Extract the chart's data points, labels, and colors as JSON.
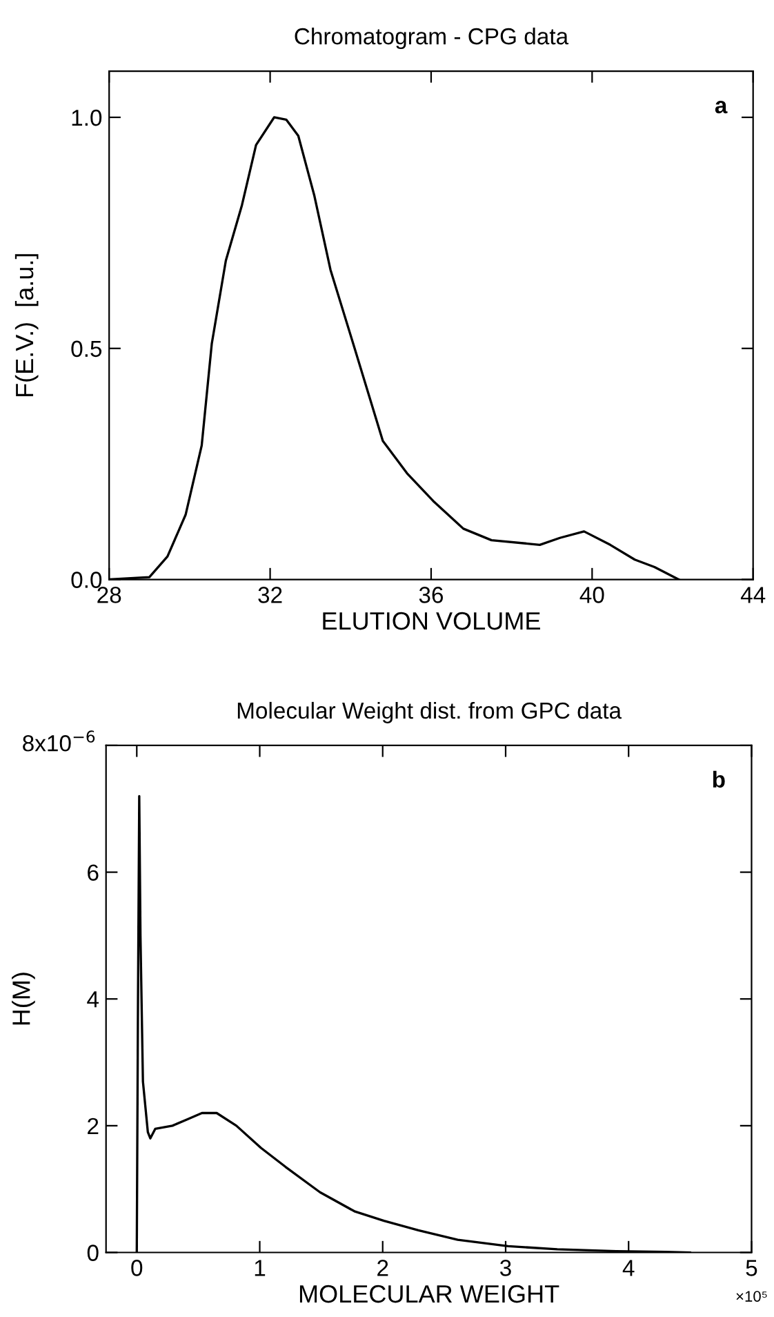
{
  "chart_data": [
    {
      "type": "line",
      "title": "Chromatogram - CPG data",
      "xlabel": "ELUTION VOLUME",
      "ylabel": "F(E.V.)  [a.u.]",
      "annotations": [
        "a"
      ],
      "x": [
        28,
        29.0,
        29.45,
        29.9,
        30.3,
        30.55,
        30.9,
        31.3,
        31.65,
        32.1,
        32.4,
        32.7,
        33.1,
        33.5,
        34.1,
        34.8,
        35.4,
        36.05,
        36.8,
        37.5,
        38.7,
        39.2,
        39.8,
        40.45,
        41.06,
        41.55,
        42.15
      ],
      "series": [
        {
          "color": "#000000",
          "values": [
            0,
            0.005,
            0.05,
            0.14,
            0.29,
            0.51,
            0.69,
            0.81,
            0.94,
            1.0,
            0.995,
            0.96,
            0.83,
            0.67,
            0.5,
            0.3,
            0.23,
            0.17,
            0.11,
            0.085,
            0.075,
            0.09,
            0.104,
            0.075,
            0.043,
            0.027,
            0.0
          ]
        }
      ],
      "xlim": [
        28,
        44
      ],
      "xticks": [
        28,
        32,
        36,
        40,
        44
      ],
      "ylim": [
        0,
        1.1
      ],
      "yticks": [
        {
          "value": 0,
          "label": "0.0"
        },
        0.5,
        {
          "value": 1,
          "label": "1.0"
        }
      ],
      "grid": false,
      "legend": false
    },
    {
      "type": "line",
      "title": "Molecular Weight dist. from GPC data",
      "xlabel": "MOLECULAR WEIGHT",
      "ylabel": "H(M)",
      "annotations": [
        "b",
        "×10⁵",
        "8x10$^{−6}$"
      ],
      "x": [
        0,
        0.01,
        0.02,
        0.03,
        0.05,
        0.09,
        0.11,
        0.15,
        0.29,
        0.41,
        0.53,
        0.65,
        0.81,
        1.01,
        1.21,
        1.49,
        1.77,
        2.01,
        2.29,
        2.61,
        3.02,
        3.42,
        3.9,
        4.3,
        4.5
      ],
      "series": [
        {
          "color": "#000000",
          "values": [
            0,
            4.0,
            7.2,
            5.0,
            2.7,
            1.9,
            1.8,
            1.95,
            2.0,
            2.1,
            2.2,
            2.2,
            2.0,
            1.65,
            1.35,
            0.95,
            0.65,
            0.5,
            0.35,
            0.2,
            0.1,
            0.05,
            0.02,
            0.01,
            0
          ]
        }
      ],
      "xlim": [
        -0.25,
        5
      ],
      "xticks": [
        0,
        1,
        2,
        3,
        4,
        5
      ],
      "ylim": [
        0,
        8
      ],
      "yticks": [
        0,
        2,
        4,
        6,
        {
          "value": 8,
          "label": null
        }
      ],
      "grid": false,
      "legend": false
    }
  ]
}
